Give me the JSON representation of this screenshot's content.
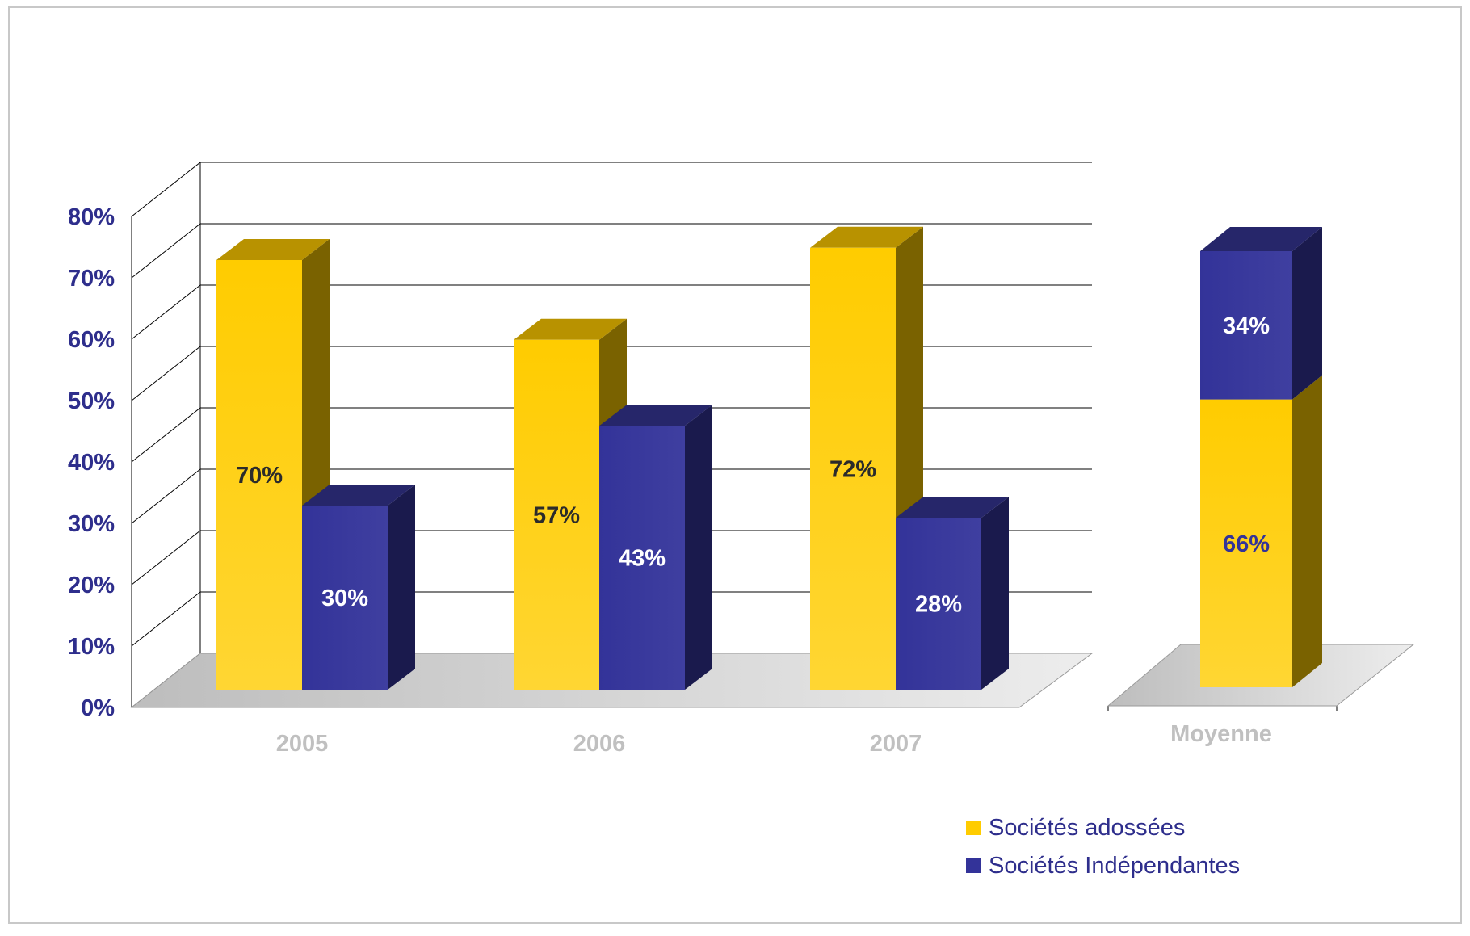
{
  "colors": {
    "adossees": "#FFCC00",
    "independantes": "#333399",
    "axis_text": "#2E2E8C",
    "category_text": "#C0C0C0",
    "grid": "#000000",
    "floor": "#D6D6D6",
    "frame": "#C8C8C8"
  },
  "chart_data": [
    {
      "type": "bar",
      "subtype": "clustered-3d",
      "categories": [
        "2005",
        "2006",
        "2007"
      ],
      "series": [
        {
          "name": "Sociétés adossées",
          "values": [
            70,
            57,
            72
          ],
          "labels": [
            "70%",
            "57%",
            "72%"
          ]
        },
        {
          "name": "Sociétés Indépendantes",
          "values": [
            30,
            43,
            28
          ],
          "labels": [
            "30%",
            "43%",
            "28%"
          ]
        }
      ],
      "yaxis": {
        "ylim": [
          0,
          80
        ],
        "ticks": [
          "0%",
          "10%",
          "20%",
          "30%",
          "40%",
          "50%",
          "60%",
          "70%",
          "80%"
        ]
      },
      "grid": true
    },
    {
      "type": "bar",
      "subtype": "stacked-3d",
      "categories": [
        "Moyenne"
      ],
      "series": [
        {
          "name": "Sociétés adossées",
          "values": [
            66
          ],
          "labels": [
            "66%"
          ]
        },
        {
          "name": "Sociétés Indépendantes",
          "values": [
            34
          ],
          "labels": [
            "34%"
          ]
        }
      ],
      "grid": false
    }
  ],
  "legend": {
    "placement": "bottom-right",
    "items": [
      {
        "label": "Sociétés adossées",
        "color": "#FFCC00"
      },
      {
        "label": "Sociétés Indépendantes",
        "color": "#333399"
      }
    ]
  }
}
